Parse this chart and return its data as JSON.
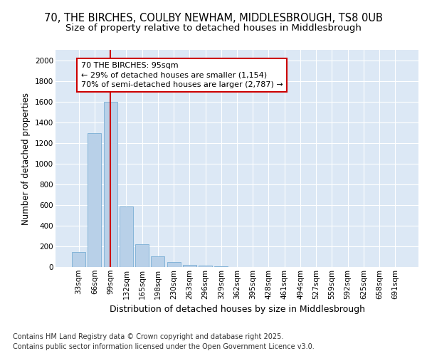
{
  "title_line1": "70, THE BIRCHES, COULBY NEWHAM, MIDDLESBROUGH, TS8 0UB",
  "title_line2": "Size of property relative to detached houses in Middlesbrough",
  "xlabel": "Distribution of detached houses by size in Middlesbrough",
  "ylabel": "Number of detached properties",
  "categories": [
    "33sqm",
    "66sqm",
    "99sqm",
    "132sqm",
    "165sqm",
    "198sqm",
    "230sqm",
    "263sqm",
    "296sqm",
    "329sqm",
    "362sqm",
    "395sqm",
    "428sqm",
    "461sqm",
    "494sqm",
    "527sqm",
    "559sqm",
    "592sqm",
    "625sqm",
    "658sqm",
    "691sqm"
  ],
  "values": [
    145,
    1295,
    1595,
    585,
    220,
    100,
    48,
    22,
    12,
    5,
    2,
    0,
    0,
    0,
    0,
    0,
    0,
    0,
    0,
    0,
    0
  ],
  "bar_color": "#b8d0e8",
  "bar_edge_color": "#7aaed4",
  "vline_x_idx": 2,
  "vline_color": "#cc0000",
  "annotation_text": "70 THE BIRCHES: 95sqm\n← 29% of detached houses are smaller (1,154)\n70% of semi-detached houses are larger (2,787) →",
  "annotation_box_color": "#ffffff",
  "annotation_box_edgecolor": "#cc0000",
  "ylim": [
    0,
    2100
  ],
  "yticks": [
    0,
    200,
    400,
    600,
    800,
    1000,
    1200,
    1400,
    1600,
    1800,
    2000
  ],
  "plot_bg_color": "#dce8f5",
  "fig_bg_color": "#ffffff",
  "grid_color": "#ffffff",
  "footer_line1": "Contains HM Land Registry data © Crown copyright and database right 2025.",
  "footer_line2": "Contains public sector information licensed under the Open Government Licence v3.0.",
  "title_fontsize": 10.5,
  "subtitle_fontsize": 9.5,
  "tick_fontsize": 7.5,
  "ylabel_fontsize": 8.5,
  "xlabel_fontsize": 9,
  "annotation_fontsize": 8,
  "footer_fontsize": 7
}
